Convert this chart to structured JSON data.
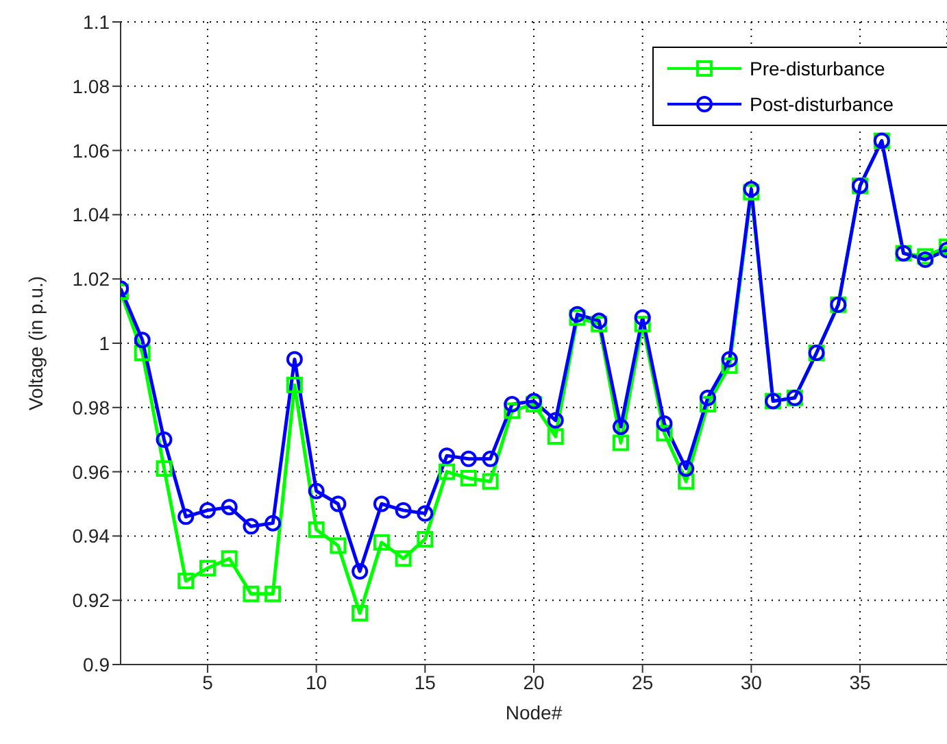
{
  "chart_data": {
    "type": "line",
    "xlabel": "Node#",
    "ylabel": "Voltage (in p.u.)",
    "x": [
      1,
      2,
      3,
      4,
      5,
      6,
      7,
      8,
      9,
      10,
      11,
      12,
      13,
      14,
      15,
      16,
      17,
      18,
      19,
      20,
      21,
      22,
      23,
      24,
      25,
      26,
      27,
      28,
      29,
      30,
      31,
      32,
      33,
      34,
      35,
      36,
      37,
      38,
      39
    ],
    "series": [
      {
        "name": "Pre-disturbance",
        "color": "#00ff00",
        "marker": "square",
        "values": [
          1.016,
          0.997,
          0.961,
          0.926,
          0.93,
          0.933,
          0.922,
          0.922,
          0.987,
          0.942,
          0.937,
          0.916,
          0.938,
          0.933,
          0.939,
          0.96,
          0.958,
          0.957,
          0.979,
          0.981,
          0.971,
          1.008,
          1.006,
          0.969,
          1.006,
          0.972,
          0.957,
          0.981,
          0.993,
          1.047,
          0.982,
          0.983,
          0.997,
          1.012,
          1.049,
          1.063,
          1.028,
          1.027,
          1.03
        ]
      },
      {
        "name": "Post-disturbance",
        "color": "#0000ff",
        "marker": "circle",
        "values": [
          1.017,
          1.001,
          0.97,
          0.946,
          0.948,
          0.949,
          0.943,
          0.944,
          0.995,
          0.954,
          0.95,
          0.929,
          0.95,
          0.948,
          0.947,
          0.965,
          0.964,
          0.964,
          0.981,
          0.982,
          0.976,
          1.009,
          1.007,
          0.974,
          1.008,
          0.975,
          0.961,
          0.983,
          0.995,
          1.048,
          0.982,
          0.983,
          0.997,
          1.012,
          1.049,
          1.063,
          1.028,
          1.026,
          1.029
        ]
      }
    ],
    "xlim": [
      1,
      39
    ],
    "xticks": [
      5,
      10,
      15,
      20,
      25,
      30,
      35
    ],
    "ylim": [
      0.9,
      1.1
    ],
    "yticks": [
      0.9,
      0.92,
      0.94,
      0.96,
      0.98,
      1,
      1.02,
      1.04,
      1.06,
      1.08,
      1.1
    ],
    "grid": true,
    "legend": "top right",
    "line_style": "solid"
  }
}
